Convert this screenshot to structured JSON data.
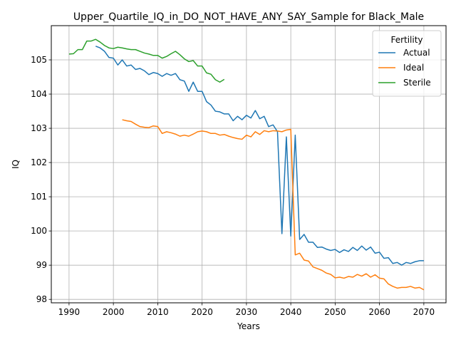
{
  "chart_data": {
    "type": "line",
    "title": "Upper_Quartile_IQ_in_DO_NOT_HAVE_ANY_SAY_Sample for Black_Male",
    "xlabel": "Years",
    "ylabel": "IQ",
    "xlim": [
      1986,
      2075
    ],
    "ylim": [
      97.9,
      106.0
    ],
    "xticks": [
      1990,
      2000,
      2010,
      2020,
      2030,
      2040,
      2050,
      2060,
      2070
    ],
    "yticks": [
      98,
      99,
      100,
      101,
      102,
      103,
      104,
      105
    ],
    "grid": true,
    "legend": {
      "title": "Fertility",
      "location": "top-right"
    },
    "series": [
      {
        "name": "Actual",
        "color": "#1f77b4",
        "x": [
          1996,
          1997,
          1998,
          1999,
          2000,
          2001,
          2002,
          2003,
          2004,
          2005,
          2006,
          2007,
          2008,
          2009,
          2010,
          2011,
          2012,
          2013,
          2014,
          2015,
          2016,
          2017,
          2018,
          2019,
          2020,
          2021,
          2022,
          2023,
          2024,
          2025,
          2026,
          2027,
          2028,
          2029,
          2030,
          2031,
          2032,
          2033,
          2034,
          2035,
          2036,
          2037,
          2038,
          2039,
          2040,
          2041,
          2042,
          2043,
          2044,
          2045,
          2046,
          2047,
          2048,
          2049,
          2050,
          2051,
          2052,
          2053,
          2054,
          2055,
          2056,
          2057,
          2058,
          2059,
          2060,
          2061,
          2062,
          2063,
          2064,
          2065,
          2066,
          2067,
          2068,
          2069,
          2070
        ],
        "values": [
          105.4,
          105.35,
          105.25,
          105.07,
          105.05,
          104.85,
          105.0,
          104.82,
          104.85,
          104.72,
          104.75,
          104.68,
          104.57,
          104.63,
          104.6,
          104.52,
          104.6,
          104.55,
          104.6,
          104.42,
          104.38,
          104.08,
          104.35,
          104.08,
          104.08,
          103.78,
          103.68,
          103.5,
          103.48,
          103.42,
          103.42,
          103.22,
          103.35,
          103.25,
          103.38,
          103.3,
          103.52,
          103.28,
          103.35,
          103.05,
          103.1,
          102.9,
          99.92,
          102.75,
          99.85,
          102.8,
          99.75,
          99.9,
          99.67,
          99.67,
          99.52,
          99.53,
          99.47,
          99.43,
          99.46,
          99.37,
          99.45,
          99.4,
          99.52,
          99.43,
          99.56,
          99.44,
          99.53,
          99.35,
          99.38,
          99.2,
          99.22,
          99.05,
          99.08,
          99.0,
          99.08,
          99.05,
          99.1,
          99.13,
          99.13
        ]
      },
      {
        "name": "Ideal",
        "color": "#ff7f0e",
        "x": [
          2002,
          2003,
          2004,
          2005,
          2006,
          2007,
          2008,
          2009,
          2010,
          2011,
          2012,
          2013,
          2014,
          2015,
          2016,
          2017,
          2018,
          2019,
          2020,
          2021,
          2022,
          2023,
          2024,
          2025,
          2026,
          2027,
          2028,
          2029,
          2030,
          2031,
          2032,
          2033,
          2034,
          2035,
          2036,
          2037,
          2038,
          2039,
          2040,
          2041,
          2042,
          2043,
          2044,
          2045,
          2046,
          2047,
          2048,
          2049,
          2050,
          2051,
          2052,
          2053,
          2054,
          2055,
          2056,
          2057,
          2058,
          2059,
          2060,
          2061,
          2062,
          2063,
          2064,
          2065,
          2066,
          2067,
          2068,
          2069,
          2070
        ],
        "values": [
          103.25,
          103.22,
          103.2,
          103.12,
          103.05,
          103.03,
          103.02,
          103.07,
          103.05,
          102.85,
          102.9,
          102.87,
          102.83,
          102.77,
          102.8,
          102.77,
          102.83,
          102.9,
          102.92,
          102.9,
          102.85,
          102.85,
          102.8,
          102.82,
          102.77,
          102.73,
          102.7,
          102.68,
          102.8,
          102.75,
          102.9,
          102.82,
          102.93,
          102.9,
          102.93,
          102.92,
          102.9,
          102.95,
          102.97,
          99.3,
          99.35,
          99.15,
          99.12,
          98.95,
          98.9,
          98.85,
          98.77,
          98.73,
          98.63,
          98.65,
          98.62,
          98.67,
          98.65,
          98.73,
          98.68,
          98.75,
          98.65,
          98.72,
          98.62,
          98.6,
          98.45,
          98.38,
          98.33,
          98.35,
          98.35,
          98.38,
          98.33,
          98.35,
          98.28
        ]
      },
      {
        "name": "Sterile",
        "color": "#2ca02c",
        "x": [
          1990,
          1991,
          1992,
          1993,
          1994,
          1995,
          1996,
          1997,
          1998,
          1999,
          2000,
          2001,
          2002,
          2003,
          2004,
          2005,
          2006,
          2007,
          2008,
          2009,
          2010,
          2011,
          2012,
          2013,
          2014,
          2015,
          2016,
          2017,
          2018,
          2019,
          2020,
          2021,
          2022,
          2023,
          2024,
          2025
        ],
        "values": [
          105.17,
          105.18,
          105.3,
          105.3,
          105.55,
          105.55,
          105.6,
          105.52,
          105.42,
          105.35,
          105.33,
          105.37,
          105.35,
          105.32,
          105.3,
          105.3,
          105.25,
          105.2,
          105.17,
          105.13,
          105.13,
          105.05,
          105.1,
          105.18,
          105.25,
          105.15,
          105.03,
          104.95,
          104.98,
          104.82,
          104.82,
          104.62,
          104.58,
          104.42,
          104.35,
          104.43
        ]
      }
    ]
  }
}
